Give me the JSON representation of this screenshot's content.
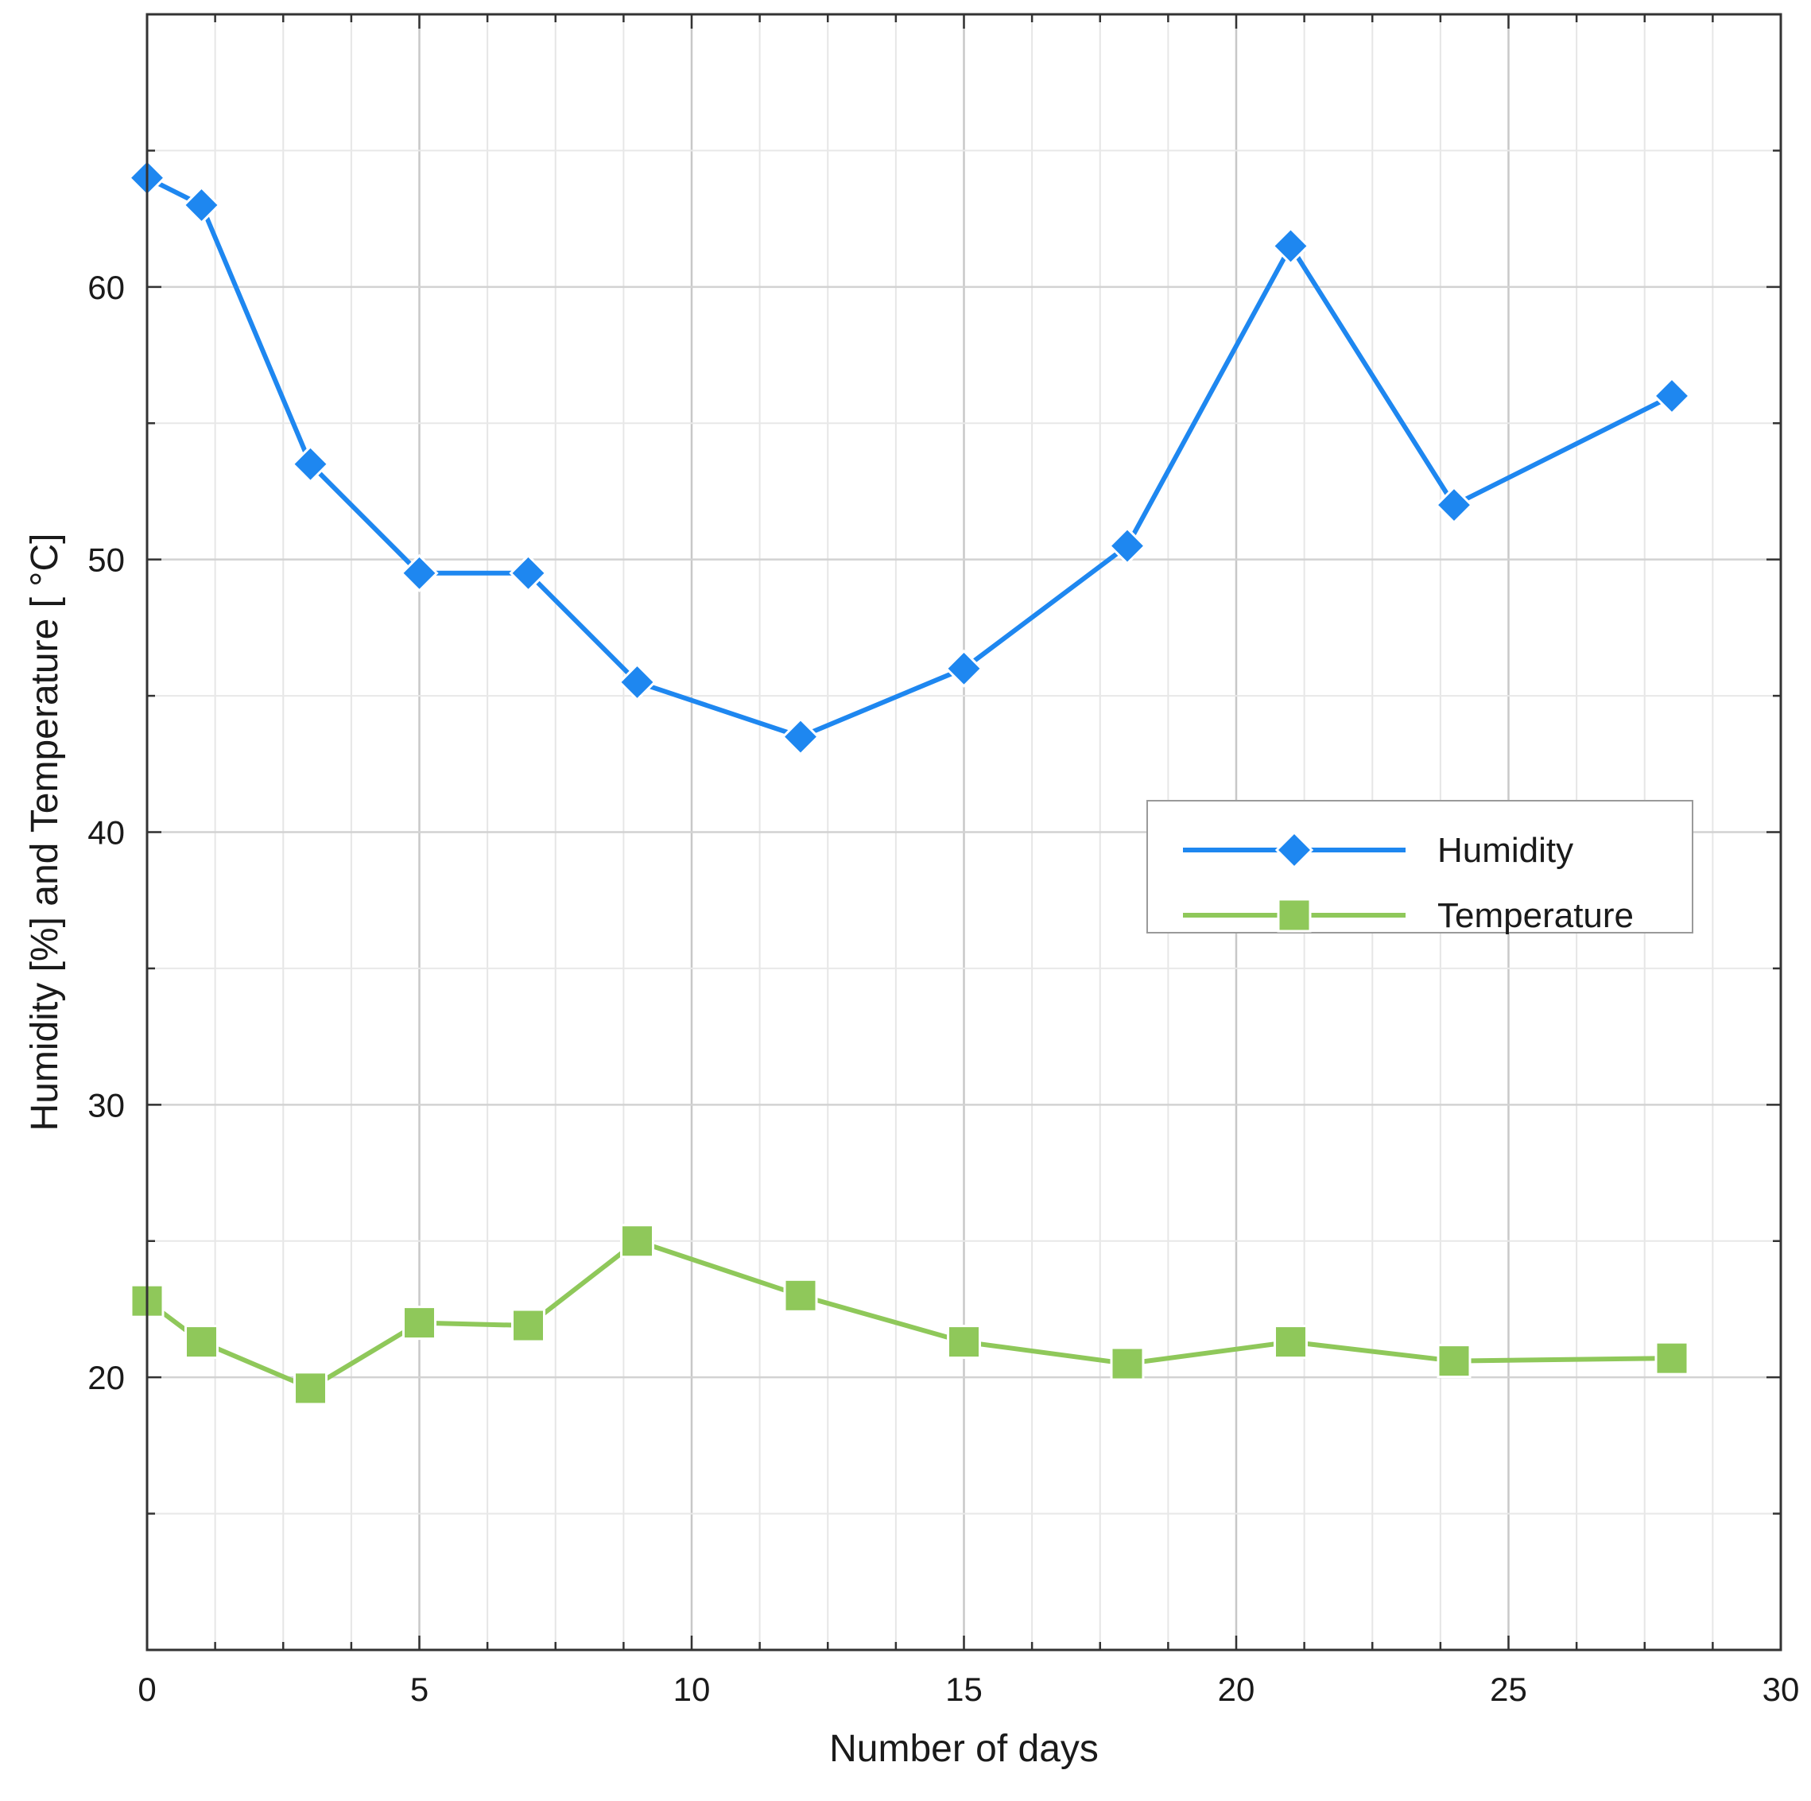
{
  "chart_data": {
    "type": "line",
    "title": "",
    "xlabel": "Number of days",
    "ylabel": "Humidity [%] and Temperature [ °C]",
    "xlim": [
      0,
      30
    ],
    "ylim": [
      10,
      70
    ],
    "x_ticks": [
      0,
      5,
      10,
      15,
      20,
      25,
      30
    ],
    "y_ticks": [
      20,
      30,
      40,
      50,
      60
    ],
    "x_tick_labels": [
      "0",
      "5",
      "10",
      "15",
      "20",
      "25",
      "30"
    ],
    "y_tick_labels": [
      "20",
      "30",
      "40",
      "50",
      "60"
    ],
    "grid": true,
    "legend_position": "center-right",
    "series": [
      {
        "name": "Humidity",
        "color": "#1e87f0",
        "marker": "diamond",
        "x": [
          0,
          1,
          3,
          5,
          7,
          9,
          12,
          15,
          18,
          21,
          24,
          28
        ],
        "values": [
          64,
          63,
          53.5,
          49.5,
          49.5,
          45.5,
          43.5,
          46,
          50.5,
          61.5,
          52,
          56
        ]
      },
      {
        "name": "Temperature",
        "color": "#8fc85a",
        "marker": "square",
        "x": [
          0,
          1,
          3,
          5,
          7,
          9,
          12,
          15,
          18,
          21,
          24,
          28
        ],
        "values": [
          22.8,
          21.3,
          19.6,
          22,
          21.9,
          25,
          23,
          21.3,
          20.5,
          21.3,
          20.6,
          20.7
        ]
      }
    ]
  }
}
